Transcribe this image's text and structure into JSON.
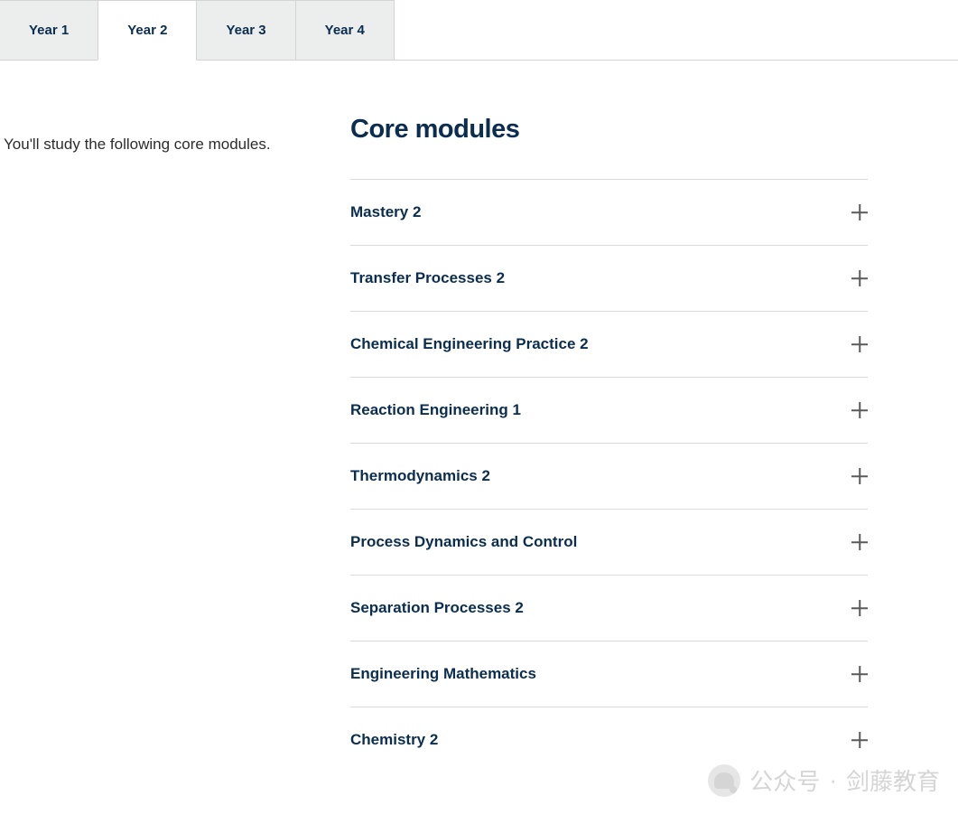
{
  "tabs": [
    {
      "label": "Year 1",
      "active": false
    },
    {
      "label": "Year 2",
      "active": true
    },
    {
      "label": "Year 3",
      "active": false
    },
    {
      "label": "Year 4",
      "active": false
    }
  ],
  "intro_text": "You'll study the following core modules.",
  "modules_heading": "Core modules",
  "modules": [
    {
      "title": "Mastery 2"
    },
    {
      "title": "Transfer Processes 2"
    },
    {
      "title": "Chemical Engineering Practice 2"
    },
    {
      "title": "Reaction Engineering 1"
    },
    {
      "title": "Thermodynamics 2"
    },
    {
      "title": "Process Dynamics and Control"
    },
    {
      "title": "Separation Processes 2"
    },
    {
      "title": "Engineering Mathematics"
    },
    {
      "title": "Chemistry 2"
    }
  ],
  "watermark": {
    "text1": "公众号",
    "separator": "·",
    "text2": "剑藤教育"
  },
  "colors": {
    "tab_inactive_bg": "#eceded",
    "tab_active_bg": "#ffffff",
    "tab_border": "#d4d4d4",
    "text_primary": "#0a2d50",
    "text_body": "#2c2c2c",
    "divider": "#d9d9d9",
    "icon": "#5a5a5a",
    "background": "#ffffff"
  },
  "typography": {
    "tab_fontsize": 15,
    "intro_fontsize": 17,
    "heading_fontsize": 29,
    "module_fontsize": 17
  }
}
